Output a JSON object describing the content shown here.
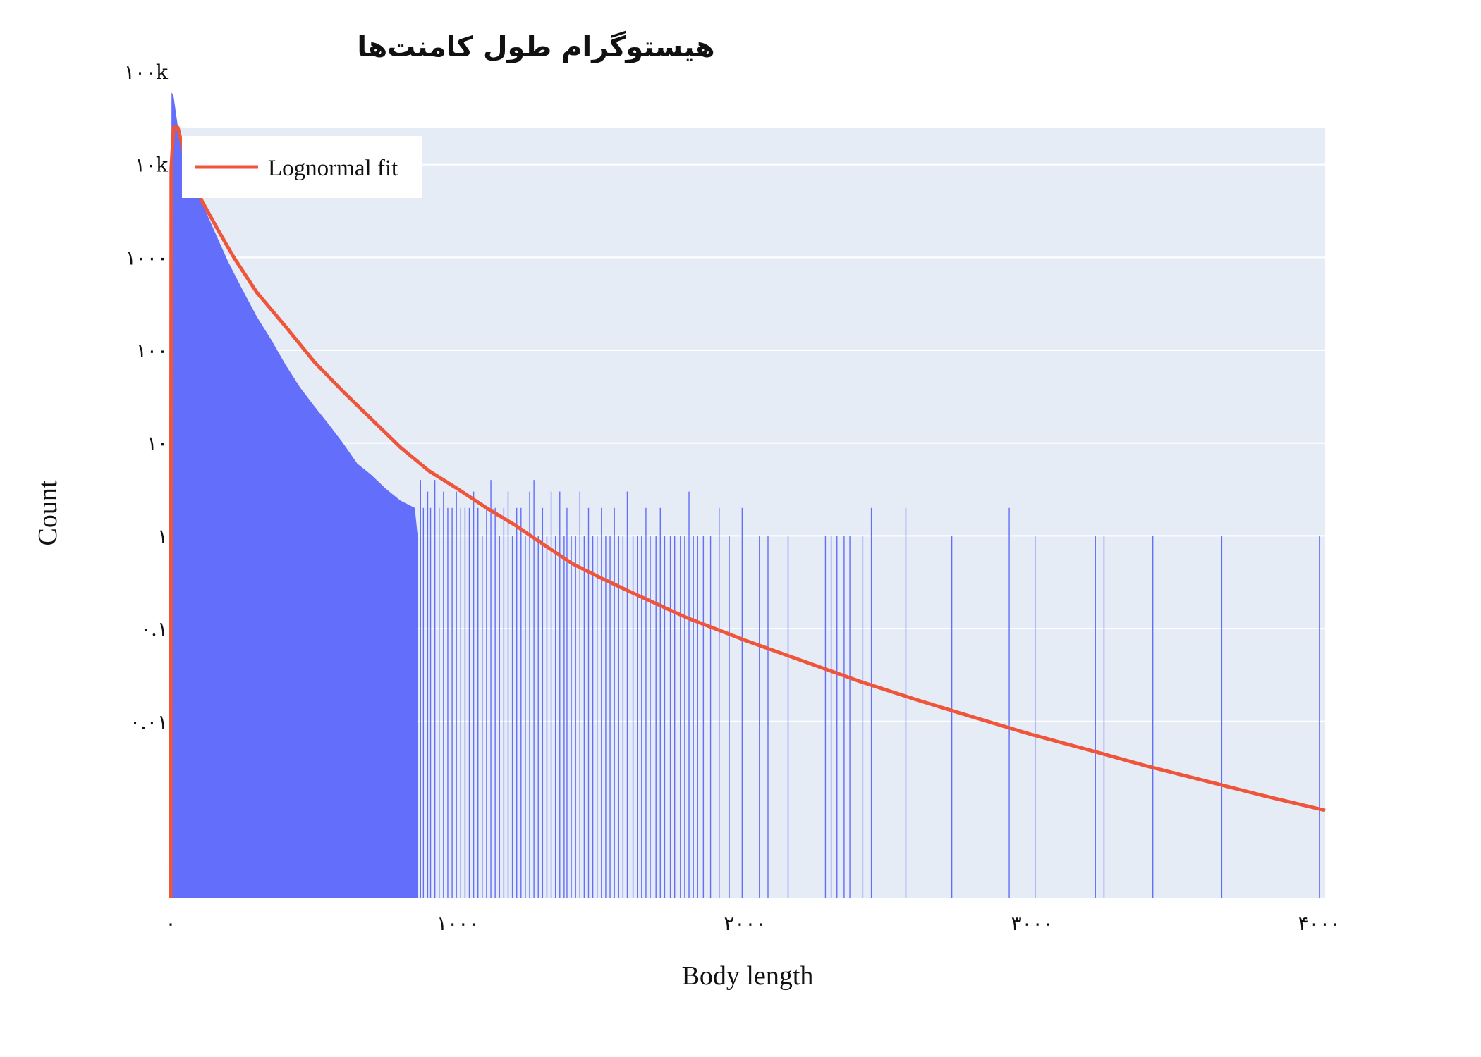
{
  "chart_data": {
    "type": "bar",
    "title": "هیستوگرام طول کامنت‌ها",
    "xlabel": "Body length",
    "ylabel": "Count",
    "x_range": [
      0,
      4020
    ],
    "y_scale": "log",
    "y_range_exponents": [
      -3.9,
      4.4
    ],
    "x_ticks": [
      {
        "value": 0,
        "label": "۰"
      },
      {
        "value": 1000,
        "label": "۱۰۰۰"
      },
      {
        "value": 2000,
        "label": "۲۰۰۰"
      },
      {
        "value": 3000,
        "label": "۳۰۰۰"
      },
      {
        "value": 4000,
        "label": "۴۰۰۰"
      }
    ],
    "y_ticks": [
      {
        "value": 100000,
        "label": "۱۰۰k"
      },
      {
        "value": 10000,
        "label": "۱۰k"
      },
      {
        "value": 1000,
        "label": "۱۰۰۰"
      },
      {
        "value": 100,
        "label": "۱۰۰"
      },
      {
        "value": 10,
        "label": "۱۰"
      },
      {
        "value": 1,
        "label": "۱"
      },
      {
        "value": 0.1,
        "label": "۰.۱"
      },
      {
        "value": 0.01,
        "label": "۰.۰۱"
      }
    ],
    "grid": true,
    "legend_position": "top-left",
    "series": [
      {
        "name": "",
        "kind": "histogram",
        "color": "#636efa",
        "dense_envelope": [
          [
            0,
            0.1
          ],
          [
            3,
            60000
          ],
          [
            10,
            55000
          ],
          [
            30,
            20000
          ],
          [
            60,
            9000
          ],
          [
            100,
            4500
          ],
          [
            150,
            2000
          ],
          [
            200,
            900
          ],
          [
            250,
            450
          ],
          [
            300,
            230
          ],
          [
            350,
            130
          ],
          [
            400,
            70
          ],
          [
            450,
            40
          ],
          [
            500,
            25
          ],
          [
            550,
            16
          ],
          [
            600,
            10
          ],
          [
            650,
            6
          ],
          [
            700,
            4.5
          ],
          [
            750,
            3.2
          ],
          [
            800,
            2.4
          ],
          [
            850,
            2
          ],
          [
            860,
            1
          ]
        ],
        "sparse_bins": [
          [
            870,
            4
          ],
          [
            880,
            2
          ],
          [
            895,
            3
          ],
          [
            905,
            2
          ],
          [
            920,
            4
          ],
          [
            935,
            2
          ],
          [
            950,
            3
          ],
          [
            965,
            2
          ],
          [
            980,
            2
          ],
          [
            995,
            3
          ],
          [
            1010,
            2
          ],
          [
            1025,
            2
          ],
          [
            1040,
            2
          ],
          [
            1055,
            3
          ],
          [
            1070,
            2
          ],
          [
            1085,
            1
          ],
          [
            1100,
            2
          ],
          [
            1115,
            4
          ],
          [
            1130,
            2
          ],
          [
            1145,
            1
          ],
          [
            1160,
            2
          ],
          [
            1175,
            3
          ],
          [
            1190,
            1
          ],
          [
            1205,
            2
          ],
          [
            1220,
            2
          ],
          [
            1235,
            1
          ],
          [
            1250,
            3
          ],
          [
            1265,
            4
          ],
          [
            1280,
            1
          ],
          [
            1295,
            2
          ],
          [
            1310,
            1
          ],
          [
            1325,
            3
          ],
          [
            1340,
            1
          ],
          [
            1355,
            3
          ],
          [
            1370,
            1
          ],
          [
            1380,
            2
          ],
          [
            1395,
            1
          ],
          [
            1410,
            1
          ],
          [
            1425,
            3
          ],
          [
            1440,
            1
          ],
          [
            1455,
            2
          ],
          [
            1470,
            1
          ],
          [
            1485,
            1
          ],
          [
            1500,
            2
          ],
          [
            1515,
            1
          ],
          [
            1530,
            1
          ],
          [
            1545,
            2
          ],
          [
            1560,
            1
          ],
          [
            1575,
            1
          ],
          [
            1590,
            3
          ],
          [
            1610,
            1
          ],
          [
            1625,
            1
          ],
          [
            1640,
            1
          ],
          [
            1655,
            2
          ],
          [
            1670,
            1
          ],
          [
            1690,
            1
          ],
          [
            1705,
            2
          ],
          [
            1720,
            1
          ],
          [
            1740,
            1
          ],
          [
            1755,
            1
          ],
          [
            1775,
            1
          ],
          [
            1790,
            1
          ],
          [
            1805,
            3
          ],
          [
            1820,
            1
          ],
          [
            1835,
            1
          ],
          [
            1855,
            1
          ],
          [
            1880,
            1
          ],
          [
            1910,
            2
          ],
          [
            1945,
            1
          ],
          [
            1990,
            2
          ],
          [
            2050,
            1
          ],
          [
            2080,
            1
          ],
          [
            2150,
            1
          ],
          [
            2280,
            1
          ],
          [
            2300,
            1
          ],
          [
            2320,
            1
          ],
          [
            2345,
            1
          ],
          [
            2365,
            1
          ],
          [
            2410,
            1
          ],
          [
            2440,
            2
          ],
          [
            2560,
            2
          ],
          [
            2720,
            1
          ],
          [
            2920,
            2
          ],
          [
            3010,
            1
          ],
          [
            3220,
            1
          ],
          [
            3250,
            1
          ],
          [
            3420,
            1
          ],
          [
            3660,
            1
          ],
          [
            4000,
            1
          ]
        ]
      },
      {
        "name": "Lognormal fit",
        "kind": "line",
        "color": "#ef553b",
        "points": [
          [
            0,
            0.0001
          ],
          [
            2,
            9000
          ],
          [
            10,
            48000
          ],
          [
            25,
            30000
          ],
          [
            50,
            12000
          ],
          [
            80,
            6500
          ],
          [
            110,
            4000
          ],
          [
            160,
            2100
          ],
          [
            220,
            1000
          ],
          [
            300,
            420
          ],
          [
            400,
            180
          ],
          [
            500,
            75
          ],
          [
            600,
            36
          ],
          [
            700,
            18
          ],
          [
            800,
            9
          ],
          [
            900,
            5
          ],
          [
            1000,
            3.2
          ],
          [
            1100,
            2
          ],
          [
            1200,
            1.3
          ],
          [
            1300,
            0.8
          ],
          [
            1400,
            0.5
          ],
          [
            1500,
            0.35
          ],
          [
            1600,
            0.25
          ],
          [
            1800,
            0.13
          ],
          [
            2000,
            0.075
          ],
          [
            2200,
            0.045
          ],
          [
            2400,
            0.027
          ],
          [
            2600,
            0.017
          ],
          [
            2800,
            0.011
          ],
          [
            3000,
            0.0072
          ],
          [
            3200,
            0.0049
          ],
          [
            3400,
            0.0033
          ],
          [
            3600,
            0.0023
          ],
          [
            3800,
            0.0016
          ],
          [
            4020,
            0.0011
          ]
        ]
      }
    ]
  }
}
